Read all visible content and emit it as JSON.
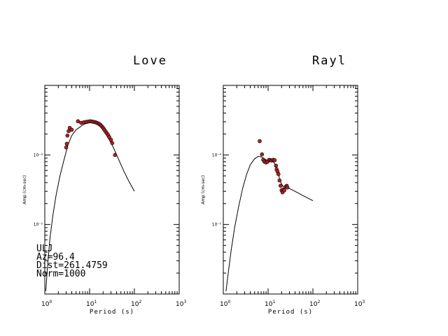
{
  "chart_data": [
    {
      "type": "scatter",
      "title": "Love",
      "xlabel": "Period (s)",
      "ylabel": "Amp (cm-sec)",
      "xscale": "log",
      "yscale": "log",
      "xlim": [
        1,
        1000
      ],
      "ylim": [
        1e-06,
        0.001
      ],
      "x_ticks": [
        {
          "base": "10",
          "exp": "0"
        },
        {
          "base": "10",
          "exp": "1"
        },
        {
          "base": "10",
          "exp": "2"
        },
        {
          "base": "10",
          "exp": "3"
        }
      ],
      "y_ticks": [
        {
          "value": 1e-05,
          "label": "10⁻⁵"
        },
        {
          "value": 0.0001,
          "label": "10⁻⁴"
        }
      ],
      "info_lines": [
        "ULJ",
        "Az=96.4",
        "Dist=261.4759",
        "Norm=1000"
      ],
      "colors": {
        "points": "#b22222",
        "curve": "#000000"
      },
      "series": [
        {
          "kind": "curve",
          "x": [
            1.05,
            1.15,
            1.3,
            1.5,
            1.8,
            2.2,
            2.7,
            3.3,
            4.0,
            5.0,
            6.0,
            7.0,
            8.0,
            10,
            12,
            14,
            16,
            18,
            20,
            23,
            26,
            30,
            35,
            40,
            50,
            60,
            75,
            100
          ],
          "y": [
            1.1e-06,
            2.5e-06,
            6.2e-06,
            1.3e-05,
            2.7e-05,
            5.1e-05,
            8.6e-05,
            0.00014,
            0.00019,
            0.00023,
            0.00025,
            0.00027,
            0.00028,
            0.00029,
            0.00029,
            0.00028,
            0.000265,
            0.00025,
            0.00023,
            0.0002,
            0.000175,
            0.00015,
            0.000123,
            0.000101,
            7.3e-05,
            5.6e-05,
            4.2e-05,
            3e-05
          ]
        },
        {
          "kind": "points",
          "x": [
            3.0,
            3.1,
            3.2,
            3.4,
            3.6,
            4.0,
            5.5,
            6.5,
            7.5,
            8.5,
            9.5,
            10.5,
            11.5,
            12.5,
            13.5,
            14.5,
            15.5,
            16.5,
            17.5,
            18.5,
            19.5,
            20.5,
            21.5,
            23,
            24.5,
            26,
            27.5,
            30,
            32,
            37
          ],
          "y": [
            0.000128,
            0.000145,
            0.00019,
            0.00022,
            0.000245,
            0.00023,
            0.000305,
            0.00029,
            0.000295,
            0.0003,
            0.000303,
            0.000305,
            0.000302,
            0.000298,
            0.000295,
            0.00029,
            0.000284,
            0.000278,
            0.00027,
            0.00026,
            0.00025,
            0.00024,
            0.000228,
            0.000215,
            0.000203,
            0.000192,
            0.00018,
            0.000165,
            0.000148,
            0.0001
          ]
        }
      ]
    },
    {
      "type": "scatter",
      "title": "Rayl",
      "xlabel": "Period (s)",
      "ylabel": "Amp (cm-sec)",
      "xscale": "log",
      "yscale": "log",
      "xlim": [
        1,
        1000
      ],
      "ylim": [
        1e-06,
        0.001
      ],
      "x_ticks": [
        {
          "base": "10",
          "exp": "0"
        },
        {
          "base": "10",
          "exp": "1"
        },
        {
          "base": "10",
          "exp": "2"
        },
        {
          "base": "10",
          "exp": "3"
        }
      ],
      "y_ticks": [
        {
          "value": 1e-05,
          "label": "10⁻⁵"
        },
        {
          "value": 0.0001,
          "label": "10⁻⁴"
        }
      ],
      "colors": {
        "points": "#b22222",
        "curve": "#000000"
      },
      "series": [
        {
          "kind": "curve",
          "x": [
            1.15,
            1.3,
            1.5,
            1.8,
            2.2,
            2.7,
            3.3,
            4.0,
            5.0,
            6.0,
            7.0,
            8.0,
            9.0,
            10,
            11,
            12,
            13,
            14,
            15,
            16,
            17,
            18,
            19,
            20,
            22,
            25,
            30,
            40,
            60,
            100
          ],
          "y": [
            1.1e-06,
            2.1e-06,
            4.3e-06,
            9.2e-06,
            1.8e-05,
            3.3e-05,
            5.2e-05,
            7.2e-05,
            8.8e-05,
            9.5e-05,
            9.4e-05,
            9e-05,
            8.5e-05,
            8.3e-05,
            8.2e-05,
            8.2e-05,
            8e-05,
            7.5e-05,
            6.9e-05,
            6.1e-05,
            5.3e-05,
            4.6e-05,
            4.1e-05,
            3.8e-05,
            3.5e-05,
            3.4e-05,
            3.3e-05,
            3e-05,
            2.6e-05,
            2.2e-05
          ]
        },
        {
          "kind": "points",
          "x": [
            6.5,
            7.3,
            7.8,
            8.3,
            9.0,
            9.7,
            10.5,
            11.3,
            12.0,
            13.0,
            14.0,
            15.0,
            15.5,
            16.2,
            17.0,
            18.0,
            19.0,
            20.0,
            21.0,
            22.0,
            23.0,
            25.0,
            26.0,
            27.0
          ],
          "y": [
            0.000158,
            0.000102,
            8.5e-05,
            8e-05,
            7.8e-05,
            8e-05,
            8.5e-05,
            8.4e-05,
            8.3e-05,
            8.5e-05,
            8.4e-05,
            7e-05,
            6.2e-05,
            5.8e-05,
            5.3e-05,
            4.3e-05,
            3.6e-05,
            3.1e-05,
            2.9e-05,
            3.2e-05,
            3.1e-05,
            3.5e-05,
            3.6e-05,
            3.4e-05
          ]
        }
      ]
    }
  ]
}
